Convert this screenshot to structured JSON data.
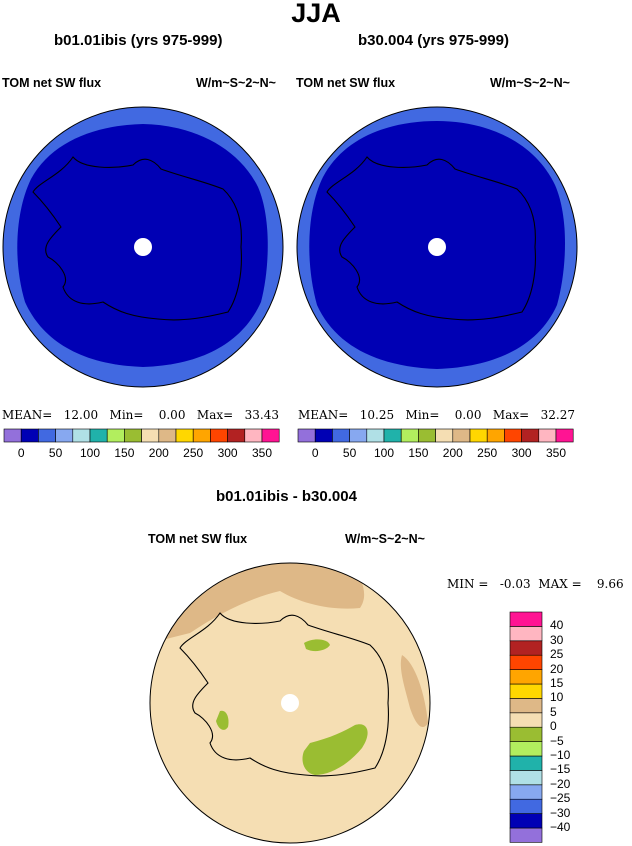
{
  "title": "JJA",
  "panels": [
    {
      "case_title": "b01.01ibis (yrs 975-999)",
      "variable": "TOM net SW flux",
      "units": "W/m~S~2~N~",
      "stats": {
        "mean_label": "MEAN=",
        "mean": "12.00",
        "min_label": "Min=",
        "min": "0.00",
        "max_label": "Max=",
        "max": "33.43"
      },
      "colors": {
        "outer_ring": "#4169e1",
        "interior": "#0000b4"
      }
    },
    {
      "case_title": "b30.004 (yrs 975-999)",
      "variable": "TOM net SW flux",
      "units": "W/m~S~2~N~",
      "stats": {
        "mean_label": "MEAN=",
        "mean": "10.25",
        "min_label": "Min=",
        "min": "0.00",
        "max_label": "Max=",
        "max": "32.27"
      },
      "colors": {
        "outer_ring": "#4169e1",
        "interior": "#0000b4"
      }
    }
  ],
  "horizontal_colorbar": {
    "colors": [
      "#9370db",
      "#0000b4",
      "#4169e1",
      "#87a8f0",
      "#b0e0e6",
      "#20b2aa",
      "#b2ee5e",
      "#9abd32",
      "#f5deb3",
      "#deb887",
      "#ffd700",
      "#ffa500",
      "#ff4500",
      "#b22222",
      "#ffb6c1",
      "#ff1493"
    ],
    "tick_labels": [
      "0",
      "50",
      "100",
      "150",
      "200",
      "250",
      "300",
      "350"
    ]
  },
  "difference": {
    "title": "b01.01ibis - b30.004",
    "variable": "TOM net SW flux",
    "units": "W/m~S~2~N~",
    "stats": {
      "min_label": "MIN =",
      "min": "-0.03",
      "max_label": "MAX =",
      "max": "9.66"
    },
    "colors": {
      "background": "#f5deb3",
      "patch_5_10": "#deb887",
      "patch_neg": "#9abd32"
    }
  },
  "vertical_colorbar": {
    "colors_bottom_to_top": [
      "#9370db",
      "#0000b4",
      "#4169e1",
      "#87a8f0",
      "#b0e0e6",
      "#20b2aa",
      "#b2ee5e",
      "#9abd32",
      "#f5deb3",
      "#deb887",
      "#ffd700",
      "#ffa500",
      "#ff4500",
      "#b22222",
      "#ffb6c1",
      "#ff1493"
    ],
    "tick_labels_top_to_bottom": [
      "40",
      "30",
      "25",
      "20",
      "15",
      "10",
      "5",
      "0",
      "−5",
      "−10",
      "−15",
      "−20",
      "−25",
      "−30",
      "−40"
    ]
  }
}
